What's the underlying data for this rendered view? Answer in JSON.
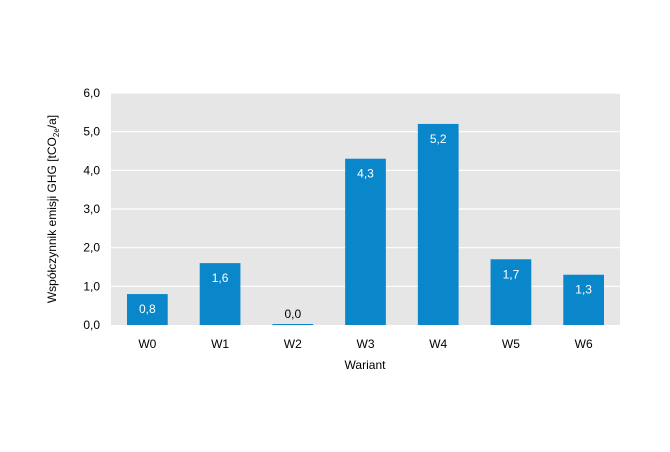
{
  "chart_data": {
    "type": "bar",
    "categories": [
      "W0",
      "W1",
      "W2",
      "W3",
      "W4",
      "W5",
      "W6"
    ],
    "values": [
      0.8,
      1.6,
      0.0,
      4.3,
      5.2,
      1.7,
      1.3
    ],
    "value_labels": [
      "0,8",
      "1,6",
      "0,0",
      "4,3",
      "5,2",
      "1,7",
      "1,3"
    ],
    "y_ticks": [
      0,
      1,
      2,
      3,
      4,
      5,
      6
    ],
    "y_tick_labels": [
      "0,0",
      "1,0",
      "2,0",
      "3,0",
      "4,0",
      "5,0",
      "6,0"
    ],
    "xlabel": "Wariant",
    "ylabel": {
      "main": "Współczynnik emisji GHG [tCO",
      "sub1": "2",
      "sub2": "e",
      "end": "/a]"
    },
    "ylim": [
      0,
      6
    ],
    "grid": true,
    "colors": {
      "bar": "#0A87CB",
      "plot_bg": "#E6E6E6",
      "grid": "#FFFFFF",
      "label_inside": "#FFFFFF",
      "label_outside": "#000000"
    }
  }
}
